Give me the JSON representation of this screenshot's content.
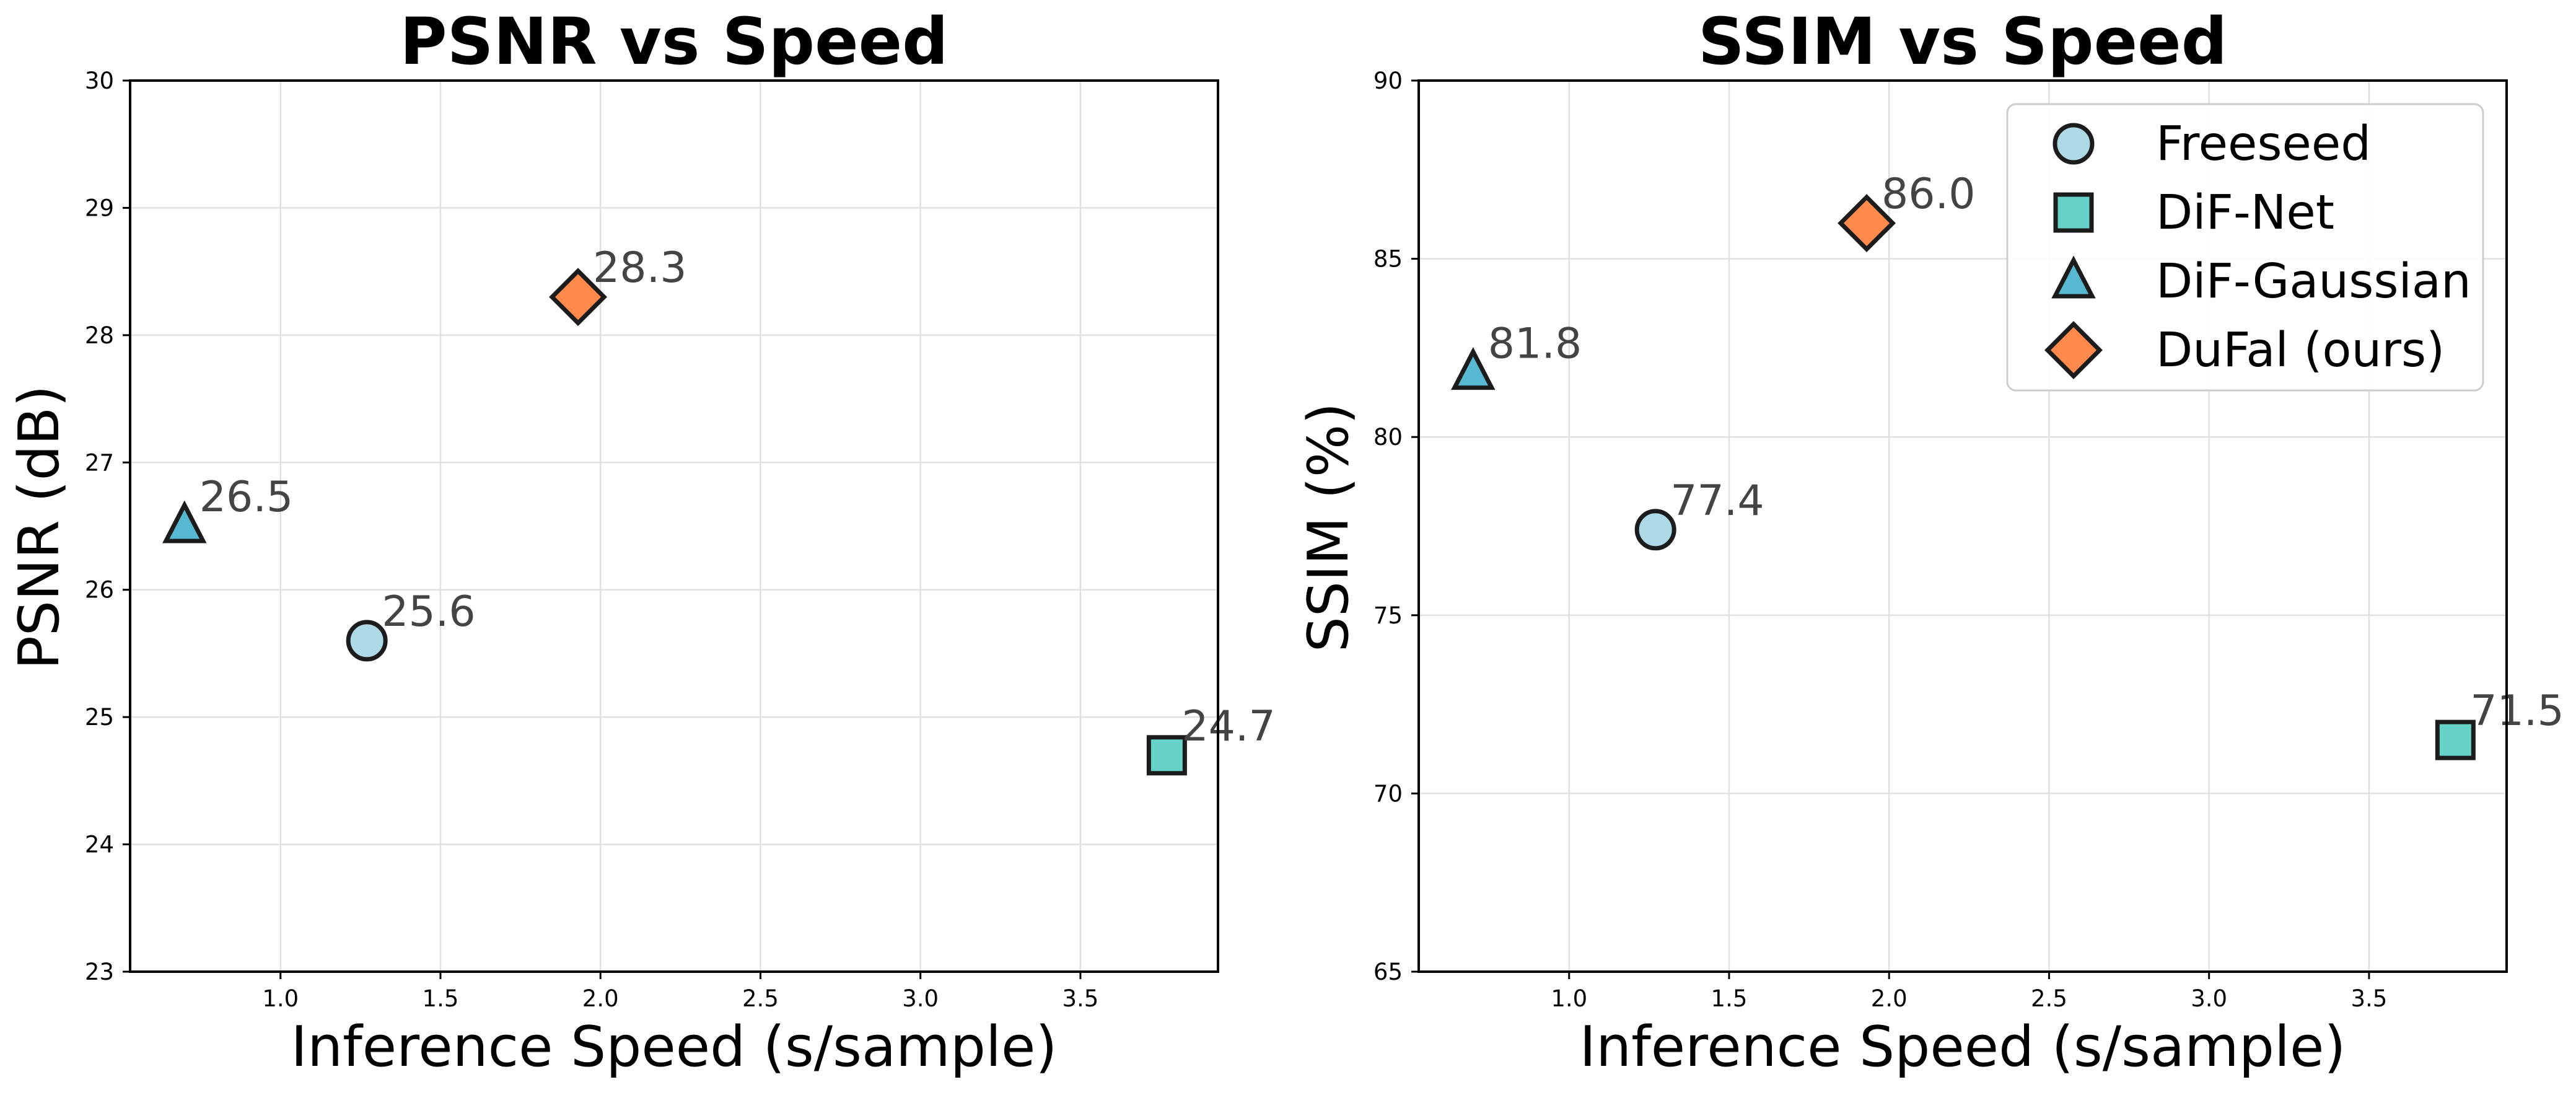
{
  "chart_data": [
    {
      "type": "scatter",
      "title": "PSNR vs Speed",
      "xlabel": "Inference Speed (s/sample)",
      "ylabel": "PSNR (dB)",
      "xlim": [
        0.53,
        3.93
      ],
      "ylim": [
        23,
        30
      ],
      "xticks": [
        1.0,
        1.5,
        2.0,
        2.5,
        3.0,
        3.5
      ],
      "xtick_labels": [
        "1.0",
        "1.5",
        "2.0",
        "2.5",
        "3.0",
        "3.5"
      ],
      "yticks": [
        23,
        24,
        25,
        26,
        27,
        28,
        29,
        30
      ],
      "ytick_labels": [
        "23",
        "24",
        "25",
        "26",
        "27",
        "28",
        "29",
        "30"
      ],
      "grid": true,
      "series": [
        {
          "name": "Freeseed",
          "marker": "circle",
          "color": "#add8e6",
          "x": 1.27,
          "y": 25.6,
          "label": "25.6"
        },
        {
          "name": "DiF-Net",
          "marker": "square",
          "color": "#66d1c6",
          "x": 3.77,
          "y": 24.7,
          "label": "24.7"
        },
        {
          "name": "DiF-Gaussian",
          "marker": "triangle",
          "color": "#57b8d2",
          "x": 0.7,
          "y": 26.5,
          "label": "26.5"
        },
        {
          "name": "DuFal (ours)",
          "marker": "diamond",
          "color": "#ff8a4c",
          "x": 1.93,
          "y": 28.3,
          "label": "28.3"
        }
      ]
    },
    {
      "type": "scatter",
      "title": "SSIM vs Speed",
      "xlabel": "Inference Speed (s/sample)",
      "ylabel": "SSIM (%)",
      "xlim": [
        0.53,
        3.93
      ],
      "ylim": [
        65,
        90
      ],
      "xticks": [
        1.0,
        1.5,
        2.0,
        2.5,
        3.0,
        3.5
      ],
      "xtick_labels": [
        "1.0",
        "1.5",
        "2.0",
        "2.5",
        "3.0",
        "3.5"
      ],
      "yticks": [
        65,
        70,
        75,
        80,
        85,
        90
      ],
      "ytick_labels": [
        "65",
        "70",
        "75",
        "80",
        "85",
        "90"
      ],
      "grid": true,
      "legend_position": "top-right",
      "series": [
        {
          "name": "Freeseed",
          "marker": "circle",
          "color": "#add8e6",
          "x": 1.27,
          "y": 77.4,
          "label": "77.4"
        },
        {
          "name": "DiF-Net",
          "marker": "square",
          "color": "#66d1c6",
          "x": 3.77,
          "y": 71.5,
          "label": "71.5"
        },
        {
          "name": "DiF-Gaussian",
          "marker": "triangle",
          "color": "#57b8d2",
          "x": 0.7,
          "y": 81.8,
          "label": "81.8"
        },
        {
          "name": "DuFal (ours)",
          "marker": "diamond",
          "color": "#ff8a4c",
          "x": 1.93,
          "y": 86.0,
          "label": "86.0"
        }
      ]
    }
  ]
}
